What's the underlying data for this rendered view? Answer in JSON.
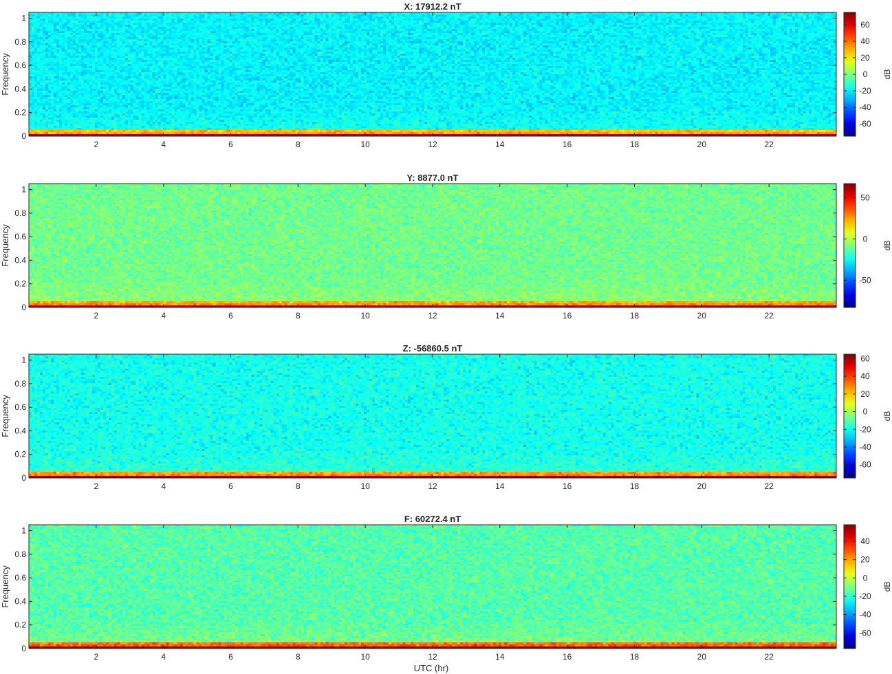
{
  "figure": {
    "xlabel": "UTC (hr)",
    "colormap": "jet",
    "colormap_colors": [
      "#00008f",
      "#0000ff",
      "#00ffff",
      "#ffff00",
      "#ff0000",
      "#800000"
    ]
  },
  "chart_data": [
    {
      "type": "heatmap",
      "title": "X: 17912.2 nT",
      "xlabel": "",
      "ylabel": "Frequency",
      "colorbar_label": "dB",
      "x_range": [
        0,
        24
      ],
      "y_range": [
        0,
        1.05
      ],
      "x_ticks": [
        2,
        4,
        6,
        8,
        10,
        12,
        14,
        16,
        18,
        20,
        22
      ],
      "y_ticks": [
        0,
        0.2,
        0.4,
        0.6,
        0.8,
        1
      ],
      "clim": [
        -75,
        75
      ],
      "colorbar_ticks": [
        -60,
        -40,
        -20,
        0,
        20,
        40,
        60
      ],
      "background_db": -20,
      "low_freq_db": 25,
      "dc_db": 68
    },
    {
      "type": "heatmap",
      "title": "Y: 8877.0 nT",
      "xlabel": "",
      "ylabel": "Frequency",
      "colorbar_label": "dB",
      "x_range": [
        0,
        24
      ],
      "y_range": [
        0,
        1.05
      ],
      "x_ticks": [
        2,
        4,
        6,
        8,
        10,
        12,
        14,
        16,
        18,
        20,
        22
      ],
      "y_ticks": [
        0,
        0.2,
        0.4,
        0.6,
        0.8,
        1
      ],
      "clim": [
        -83,
        67
      ],
      "colorbar_ticks": [
        -50,
        0,
        50
      ],
      "background_db": -10,
      "low_freq_db": 20,
      "dc_db": 60
    },
    {
      "type": "heatmap",
      "title": "Z: -56860.5 nT",
      "xlabel": "",
      "ylabel": "Frequency",
      "colorbar_label": "dB",
      "x_range": [
        0,
        24
      ],
      "y_range": [
        0,
        1.05
      ],
      "x_ticks": [
        2,
        4,
        6,
        8,
        10,
        12,
        14,
        16,
        18,
        20,
        22
      ],
      "y_ticks": [
        0,
        0.2,
        0.4,
        0.6,
        0.8,
        1
      ],
      "clim": [
        -75,
        65
      ],
      "colorbar_ticks": [
        -60,
        -40,
        -20,
        0,
        20,
        40,
        60
      ],
      "background_db": -20,
      "low_freq_db": 22,
      "dc_db": 60
    },
    {
      "type": "heatmap",
      "title": "F: 60272.4 nT",
      "xlabel": "UTC (hr)",
      "ylabel": "Frequency",
      "colorbar_label": "dB",
      "x_range": [
        0,
        24
      ],
      "y_range": [
        0,
        1.05
      ],
      "x_ticks": [
        2,
        4,
        6,
        8,
        10,
        12,
        14,
        16,
        18,
        20,
        22
      ],
      "y_ticks": [
        0,
        0.2,
        0.4,
        0.6,
        0.8,
        1
      ],
      "clim": [
        -77,
        58
      ],
      "colorbar_ticks": [
        -60,
        -40,
        -20,
        0,
        20,
        40
      ],
      "background_db": -15,
      "low_freq_db": 22,
      "dc_db": 55
    }
  ]
}
